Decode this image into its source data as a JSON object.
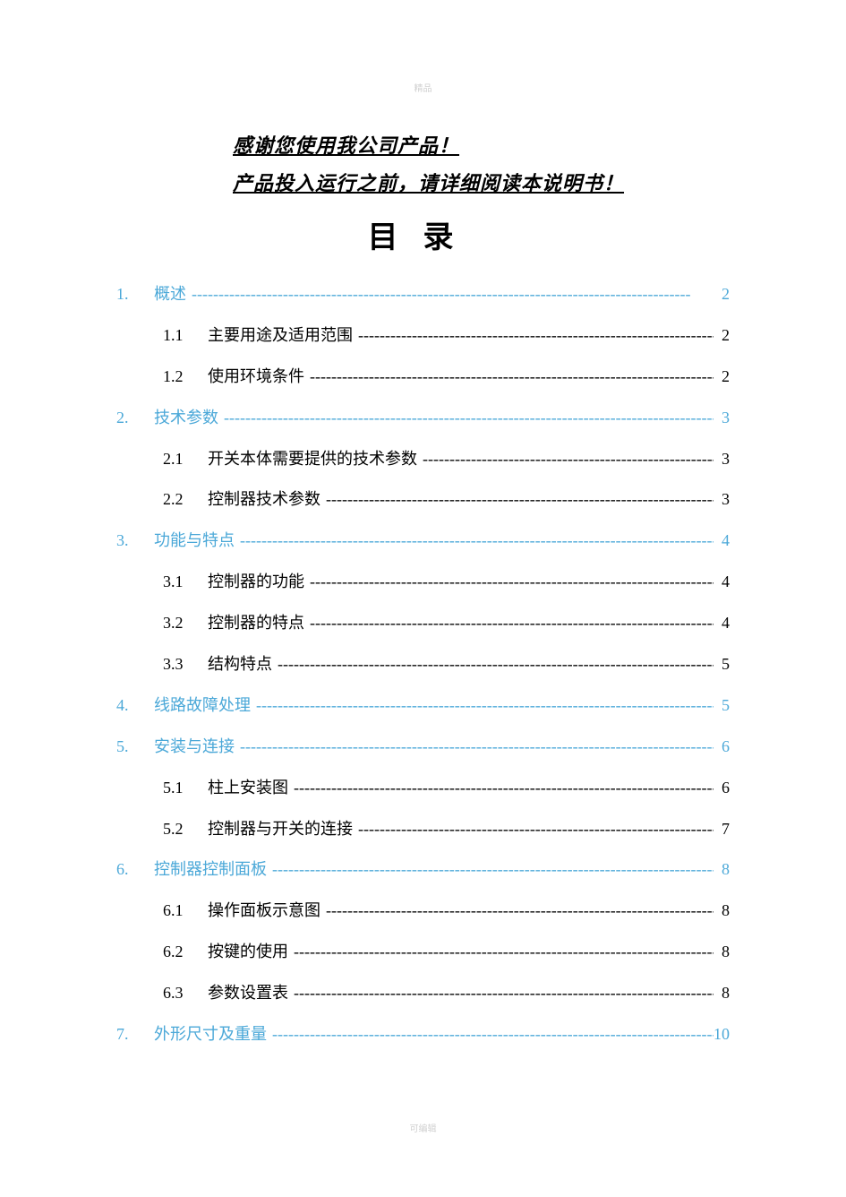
{
  "watermark_top": "精品",
  "watermark_bottom": "可编辑",
  "intro": {
    "line1": "感谢您使用我公司产品！",
    "line2": "产品投入运行之前，请详细阅读本说明书！"
  },
  "toc_title": "目录",
  "colors": {
    "section_color": "#4ba8d8",
    "subsection_color": "#000000",
    "text_color": "#000000",
    "watermark_color": "#d0d0d0",
    "background": "#ffffff"
  },
  "typography": {
    "body_font": "SimSun",
    "intro_fontsize": 22,
    "intro_style": "italic bold underline",
    "title_fontsize": 34,
    "entry_fontsize": 18,
    "line_height": 2.55
  },
  "toc": [
    {
      "type": "section",
      "num": "1.",
      "label": "概述",
      "page": "2"
    },
    {
      "type": "subsection",
      "num": "1.1",
      "label": "主要用途及适用范围",
      "page": "2"
    },
    {
      "type": "subsection",
      "num": "1.2",
      "label": "使用环境条件",
      "page": "2"
    },
    {
      "type": "section",
      "num": "2.",
      "label": "技术参数",
      "page": "3"
    },
    {
      "type": "subsection",
      "num": "2.1",
      "label": "开关本体需要提供的技术参数",
      "page": "3"
    },
    {
      "type": "subsection",
      "num": "2.2",
      "label": "控制器技术参数",
      "page": "3"
    },
    {
      "type": "section",
      "num": "3.",
      "label": "功能与特点",
      "page": "4"
    },
    {
      "type": "subsection",
      "num": "3.1",
      "label": "控制器的功能",
      "page": "4"
    },
    {
      "type": "subsection",
      "num": "3.2",
      "label": "控制器的特点",
      "page": "4"
    },
    {
      "type": "subsection",
      "num": "3.3",
      "label": "结构特点",
      "page": "5"
    },
    {
      "type": "section",
      "num": "4.",
      "label": "线路故障处理",
      "page": "5"
    },
    {
      "type": "section",
      "num": "5.",
      "label": "安装与连接",
      "page": "6"
    },
    {
      "type": "subsection",
      "num": "5.1",
      "label": "柱上安装图",
      "page": "6"
    },
    {
      "type": "subsection",
      "num": "5.2",
      "label": "控制器与开关的连接",
      "page": "7"
    },
    {
      "type": "section",
      "num": "6.",
      "label": "控制器控制面板",
      "page": "8"
    },
    {
      "type": "subsection",
      "num": "6.1",
      "label": "操作面板示意图",
      "page": "8"
    },
    {
      "type": "subsection",
      "num": "6.2",
      "label": "按键的使用",
      "page": "8"
    },
    {
      "type": "subsection",
      "num": "6.3",
      "label": "参数设置表",
      "page": "8"
    },
    {
      "type": "section",
      "num": "7.",
      "label": "外形尺寸及重量",
      "page": "10"
    }
  ]
}
